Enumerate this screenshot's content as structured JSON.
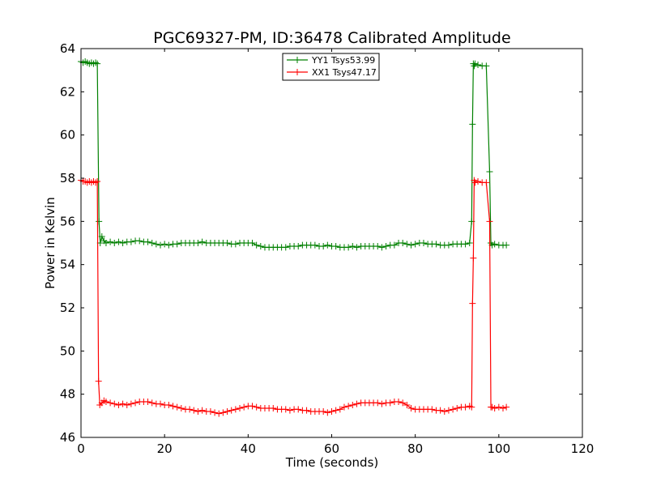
{
  "chart_data": {
    "type": "line",
    "title": "PGC69327-PM, ID:36478 Calibrated Amplitude",
    "xlabel": "Time (seconds)",
    "ylabel": "Power in Kelvin",
    "xlim": [
      0,
      120
    ],
    "ylim": [
      46,
      64
    ],
    "xticks": [
      0,
      20,
      40,
      60,
      80,
      100,
      120
    ],
    "yticks": [
      46,
      48,
      50,
      52,
      54,
      56,
      58,
      60,
      62,
      64
    ],
    "grid": false,
    "legend_position": "top-center",
    "series": [
      {
        "name": "YY1 Tsys53.99",
        "color": "#008000",
        "marker": "plus",
        "x": [
          0.0,
          0.5,
          1.0,
          1.5,
          2.0,
          2.5,
          3.0,
          3.5,
          3.9,
          4.3,
          4.6,
          5.0,
          5.5,
          6.0,
          7.0,
          8.0,
          9.0,
          10.0,
          11.0,
          12.0,
          13.0,
          14.0,
          15.0,
          16.0,
          17.0,
          18.0,
          19.0,
          20.0,
          21.0,
          22.0,
          23.0,
          24.0,
          25.0,
          26.0,
          27.0,
          28.0,
          29.0,
          30.0,
          31.0,
          32.0,
          33.0,
          34.0,
          35.0,
          36.0,
          37.0,
          38.0,
          39.0,
          40.0,
          41.0,
          42.0,
          43.0,
          44.0,
          45.0,
          46.0,
          47.0,
          48.0,
          49.0,
          50.0,
          51.0,
          52.0,
          53.0,
          54.0,
          55.0,
          56.0,
          57.0,
          58.0,
          59.0,
          60.0,
          61.0,
          62.0,
          63.0,
          64.0,
          65.0,
          66.0,
          67.0,
          68.0,
          69.0,
          70.0,
          71.0,
          72.0,
          73.0,
          74.0,
          75.0,
          76.0,
          77.0,
          78.0,
          79.0,
          80.0,
          81.0,
          82.0,
          83.0,
          84.0,
          85.0,
          86.0,
          87.0,
          88.0,
          89.0,
          90.0,
          91.0,
          92.0,
          93.0,
          93.5,
          93.7,
          93.9,
          94.1,
          94.3,
          95.0,
          96.0,
          97.0,
          97.8,
          98.1,
          98.4,
          99.0,
          100.0,
          101.0,
          101.8
        ],
        "values": [
          63.4,
          63.35,
          63.4,
          63.35,
          63.3,
          63.35,
          63.3,
          63.35,
          63.3,
          56.0,
          55.0,
          55.3,
          55.1,
          55.0,
          55.05,
          55.0,
          55.05,
          55.0,
          55.05,
          55.05,
          55.1,
          55.1,
          55.05,
          55.05,
          55.0,
          54.95,
          54.9,
          54.95,
          54.9,
          54.95,
          54.95,
          55.0,
          55.0,
          55.0,
          55.0,
          55.0,
          55.05,
          55.0,
          55.0,
          55.0,
          55.0,
          55.0,
          55.0,
          54.95,
          54.95,
          55.0,
          55.0,
          55.0,
          55.0,
          54.9,
          54.85,
          54.8,
          54.8,
          54.8,
          54.8,
          54.8,
          54.8,
          54.85,
          54.85,
          54.85,
          54.9,
          54.9,
          54.9,
          54.9,
          54.85,
          54.85,
          54.9,
          54.85,
          54.85,
          54.8,
          54.8,
          54.8,
          54.85,
          54.8,
          54.85,
          54.85,
          54.85,
          54.85,
          54.85,
          54.8,
          54.85,
          54.9,
          54.9,
          55.0,
          55.0,
          54.95,
          54.9,
          54.95,
          55.0,
          55.0,
          54.95,
          54.95,
          54.95,
          54.9,
          54.9,
          54.9,
          54.95,
          54.95,
          54.95,
          54.95,
          55.0,
          56.0,
          60.5,
          63.3,
          63.2,
          63.3,
          63.25,
          63.2,
          63.2,
          58.3,
          55.0,
          54.9,
          54.95,
          54.9,
          54.9,
          54.9
        ]
      },
      {
        "name": "XX1 Tsys47.17",
        "color": "#ff0000",
        "marker": "plus",
        "x": [
          0.0,
          0.5,
          1.0,
          1.5,
          2.0,
          2.5,
          3.0,
          3.5,
          3.9,
          4.2,
          4.5,
          5.0,
          5.5,
          6.0,
          7.0,
          8.0,
          9.0,
          10.0,
          11.0,
          12.0,
          13.0,
          14.0,
          15.0,
          16.0,
          17.0,
          18.0,
          19.0,
          20.0,
          21.0,
          22.0,
          23.0,
          24.0,
          25.0,
          26.0,
          27.0,
          28.0,
          29.0,
          30.0,
          31.0,
          32.0,
          33.0,
          34.0,
          35.0,
          36.0,
          37.0,
          38.0,
          39.0,
          40.0,
          41.0,
          42.0,
          43.0,
          44.0,
          45.0,
          46.0,
          47.0,
          48.0,
          49.0,
          50.0,
          51.0,
          52.0,
          53.0,
          54.0,
          55.0,
          56.0,
          57.0,
          58.0,
          59.0,
          60.0,
          61.0,
          62.0,
          63.0,
          64.0,
          65.0,
          66.0,
          67.0,
          68.0,
          69.0,
          70.0,
          71.0,
          72.0,
          73.0,
          74.0,
          75.0,
          76.0,
          77.0,
          78.0,
          79.0,
          80.0,
          81.0,
          82.0,
          83.0,
          84.0,
          85.0,
          86.0,
          87.0,
          88.0,
          89.0,
          90.0,
          91.0,
          92.0,
          93.0,
          93.5,
          93.7,
          93.9,
          94.1,
          94.3,
          95.0,
          96.0,
          97.0,
          97.8,
          98.1,
          98.4,
          99.0,
          100.0,
          101.0,
          101.8
        ],
        "values": [
          57.9,
          57.85,
          57.85,
          57.8,
          57.85,
          57.8,
          57.85,
          57.8,
          57.85,
          48.6,
          47.5,
          47.6,
          47.7,
          47.65,
          47.6,
          47.55,
          47.5,
          47.55,
          47.5,
          47.55,
          47.6,
          47.65,
          47.65,
          47.65,
          47.6,
          47.55,
          47.55,
          47.5,
          47.5,
          47.45,
          47.4,
          47.35,
          47.3,
          47.3,
          47.25,
          47.2,
          47.25,
          47.2,
          47.2,
          47.15,
          47.1,
          47.15,
          47.2,
          47.25,
          47.3,
          47.35,
          47.4,
          47.45,
          47.45,
          47.4,
          47.35,
          47.35,
          47.35,
          47.35,
          47.3,
          47.3,
          47.3,
          47.25,
          47.3,
          47.3,
          47.25,
          47.25,
          47.2,
          47.2,
          47.2,
          47.2,
          47.15,
          47.2,
          47.25,
          47.3,
          47.4,
          47.45,
          47.5,
          47.55,
          47.6,
          47.6,
          47.6,
          47.6,
          47.6,
          47.55,
          47.6,
          47.6,
          47.65,
          47.65,
          47.6,
          47.5,
          47.35,
          47.3,
          47.3,
          47.3,
          47.3,
          47.3,
          47.25,
          47.25,
          47.2,
          47.25,
          47.3,
          47.35,
          47.4,
          47.4,
          47.45,
          47.4,
          52.2,
          54.3,
          57.9,
          57.8,
          57.85,
          57.8,
          57.8,
          56.0,
          47.4,
          47.4,
          47.35,
          47.4,
          47.35,
          47.4
        ]
      }
    ]
  }
}
